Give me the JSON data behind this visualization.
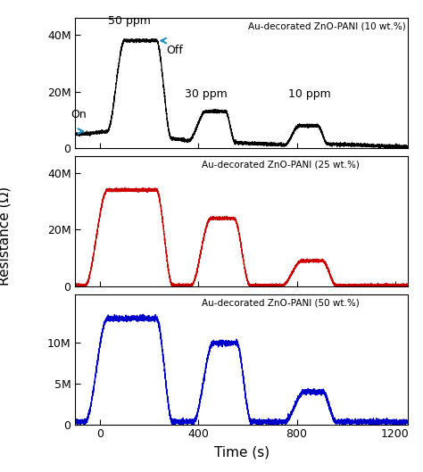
{
  "title1": "Au-decorated ZnO-PANI (10 wt.%)",
  "title2": "Au-decorated ZnO-PANI (25 wt.%)",
  "title3": "Au-decorated ZnO-PANI (50 wt.%)",
  "xlabel": "Time (s)",
  "ylabel": "Resistance (Ω)",
  "xlim": [
    -100,
    1250
  ],
  "ylim1": [
    0,
    46000000.0
  ],
  "ylim2": [
    0,
    46000000.0
  ],
  "ylim3": [
    0,
    16000000.0
  ],
  "yticks1": [
    0,
    20000000.0,
    40000000.0
  ],
  "ytick_labels1": [
    "0",
    "20M",
    "40M"
  ],
  "yticks2": [
    0,
    20000000.0,
    40000000.0
  ],
  "ytick_labels2": [
    "0",
    "20M",
    "40M"
  ],
  "yticks3": [
    0,
    5000000.0,
    10000000.0
  ],
  "ytick_labels3": [
    "0",
    "5M",
    "10M"
  ],
  "xticks": [
    0,
    400,
    800,
    1200
  ],
  "color1": "#000000",
  "color2": "#cc0000",
  "color3": "#0000cc",
  "noise_amp1": 250000,
  "noise_amp2": 250000,
  "noise_amp3": 150000,
  "figsize": [
    4.74,
    5.29
  ],
  "dpi": 100
}
